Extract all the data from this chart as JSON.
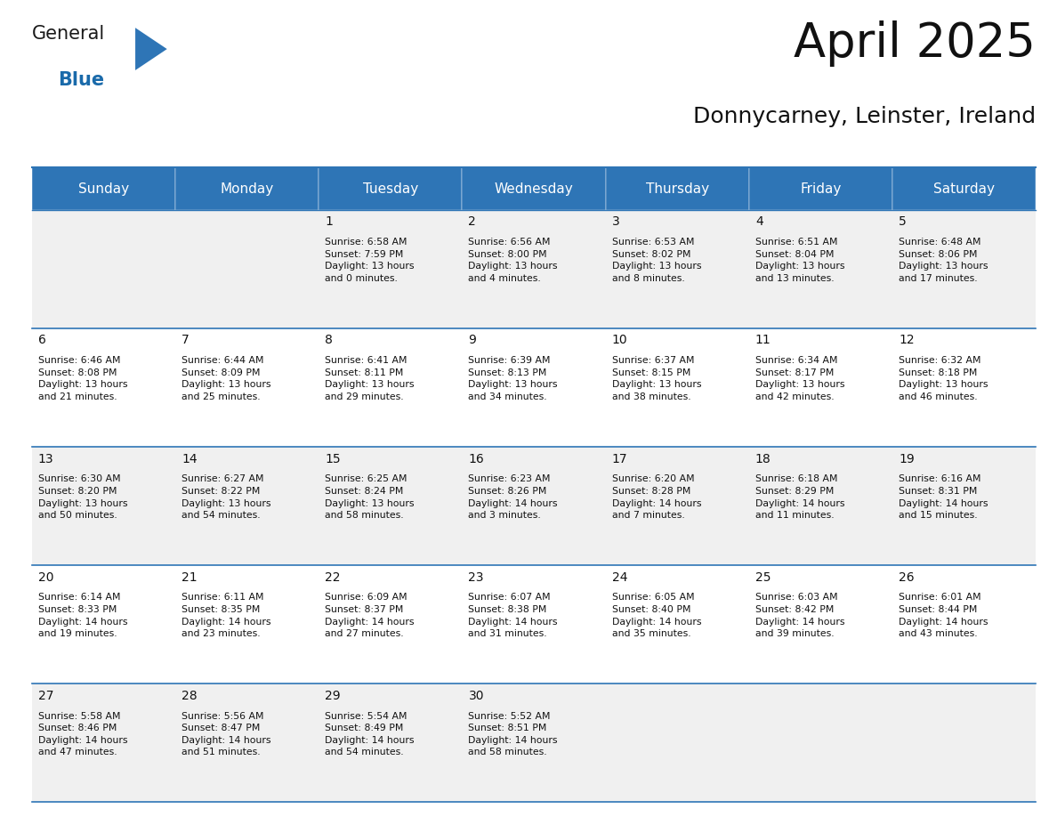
{
  "title": "April 2025",
  "subtitle": "Donnycarney, Leinster, Ireland",
  "header_bg": "#2E75B6",
  "header_text_color": "#FFFFFF",
  "header_font_size": 11,
  "day_num_font_size": 10,
  "cell_text_font_size": 7.8,
  "cell_bg_odd": "#F0F0F0",
  "cell_bg_even": "#FFFFFF",
  "grid_line_color": "#2E75B6",
  "days_of_week": [
    "Sunday",
    "Monday",
    "Tuesday",
    "Wednesday",
    "Thursday",
    "Friday",
    "Saturday"
  ],
  "weeks": [
    [
      {
        "day": "",
        "info": ""
      },
      {
        "day": "",
        "info": ""
      },
      {
        "day": "1",
        "info": "Sunrise: 6:58 AM\nSunset: 7:59 PM\nDaylight: 13 hours\nand 0 minutes."
      },
      {
        "day": "2",
        "info": "Sunrise: 6:56 AM\nSunset: 8:00 PM\nDaylight: 13 hours\nand 4 minutes."
      },
      {
        "day": "3",
        "info": "Sunrise: 6:53 AM\nSunset: 8:02 PM\nDaylight: 13 hours\nand 8 minutes."
      },
      {
        "day": "4",
        "info": "Sunrise: 6:51 AM\nSunset: 8:04 PM\nDaylight: 13 hours\nand 13 minutes."
      },
      {
        "day": "5",
        "info": "Sunrise: 6:48 AM\nSunset: 8:06 PM\nDaylight: 13 hours\nand 17 minutes."
      }
    ],
    [
      {
        "day": "6",
        "info": "Sunrise: 6:46 AM\nSunset: 8:08 PM\nDaylight: 13 hours\nand 21 minutes."
      },
      {
        "day": "7",
        "info": "Sunrise: 6:44 AM\nSunset: 8:09 PM\nDaylight: 13 hours\nand 25 minutes."
      },
      {
        "day": "8",
        "info": "Sunrise: 6:41 AM\nSunset: 8:11 PM\nDaylight: 13 hours\nand 29 minutes."
      },
      {
        "day": "9",
        "info": "Sunrise: 6:39 AM\nSunset: 8:13 PM\nDaylight: 13 hours\nand 34 minutes."
      },
      {
        "day": "10",
        "info": "Sunrise: 6:37 AM\nSunset: 8:15 PM\nDaylight: 13 hours\nand 38 minutes."
      },
      {
        "day": "11",
        "info": "Sunrise: 6:34 AM\nSunset: 8:17 PM\nDaylight: 13 hours\nand 42 minutes."
      },
      {
        "day": "12",
        "info": "Sunrise: 6:32 AM\nSunset: 8:18 PM\nDaylight: 13 hours\nand 46 minutes."
      }
    ],
    [
      {
        "day": "13",
        "info": "Sunrise: 6:30 AM\nSunset: 8:20 PM\nDaylight: 13 hours\nand 50 minutes."
      },
      {
        "day": "14",
        "info": "Sunrise: 6:27 AM\nSunset: 8:22 PM\nDaylight: 13 hours\nand 54 minutes."
      },
      {
        "day": "15",
        "info": "Sunrise: 6:25 AM\nSunset: 8:24 PM\nDaylight: 13 hours\nand 58 minutes."
      },
      {
        "day": "16",
        "info": "Sunrise: 6:23 AM\nSunset: 8:26 PM\nDaylight: 14 hours\nand 3 minutes."
      },
      {
        "day": "17",
        "info": "Sunrise: 6:20 AM\nSunset: 8:28 PM\nDaylight: 14 hours\nand 7 minutes."
      },
      {
        "day": "18",
        "info": "Sunrise: 6:18 AM\nSunset: 8:29 PM\nDaylight: 14 hours\nand 11 minutes."
      },
      {
        "day": "19",
        "info": "Sunrise: 6:16 AM\nSunset: 8:31 PM\nDaylight: 14 hours\nand 15 minutes."
      }
    ],
    [
      {
        "day": "20",
        "info": "Sunrise: 6:14 AM\nSunset: 8:33 PM\nDaylight: 14 hours\nand 19 minutes."
      },
      {
        "day": "21",
        "info": "Sunrise: 6:11 AM\nSunset: 8:35 PM\nDaylight: 14 hours\nand 23 minutes."
      },
      {
        "day": "22",
        "info": "Sunrise: 6:09 AM\nSunset: 8:37 PM\nDaylight: 14 hours\nand 27 minutes."
      },
      {
        "day": "23",
        "info": "Sunrise: 6:07 AM\nSunset: 8:38 PM\nDaylight: 14 hours\nand 31 minutes."
      },
      {
        "day": "24",
        "info": "Sunrise: 6:05 AM\nSunset: 8:40 PM\nDaylight: 14 hours\nand 35 minutes."
      },
      {
        "day": "25",
        "info": "Sunrise: 6:03 AM\nSunset: 8:42 PM\nDaylight: 14 hours\nand 39 minutes."
      },
      {
        "day": "26",
        "info": "Sunrise: 6:01 AM\nSunset: 8:44 PM\nDaylight: 14 hours\nand 43 minutes."
      }
    ],
    [
      {
        "day": "27",
        "info": "Sunrise: 5:58 AM\nSunset: 8:46 PM\nDaylight: 14 hours\nand 47 minutes."
      },
      {
        "day": "28",
        "info": "Sunrise: 5:56 AM\nSunset: 8:47 PM\nDaylight: 14 hours\nand 51 minutes."
      },
      {
        "day": "29",
        "info": "Sunrise: 5:54 AM\nSunset: 8:49 PM\nDaylight: 14 hours\nand 54 minutes."
      },
      {
        "day": "30",
        "info": "Sunrise: 5:52 AM\nSunset: 8:51 PM\nDaylight: 14 hours\nand 58 minutes."
      },
      {
        "day": "",
        "info": ""
      },
      {
        "day": "",
        "info": ""
      },
      {
        "day": "",
        "info": ""
      }
    ]
  ],
  "logo_color_general": "#1a1a1a",
  "logo_color_blue": "#1a6aaa",
  "logo_triangle_color": "#2E75B6",
  "title_fontsize": 38,
  "subtitle_fontsize": 18,
  "fig_width": 11.88,
  "fig_height": 9.18
}
